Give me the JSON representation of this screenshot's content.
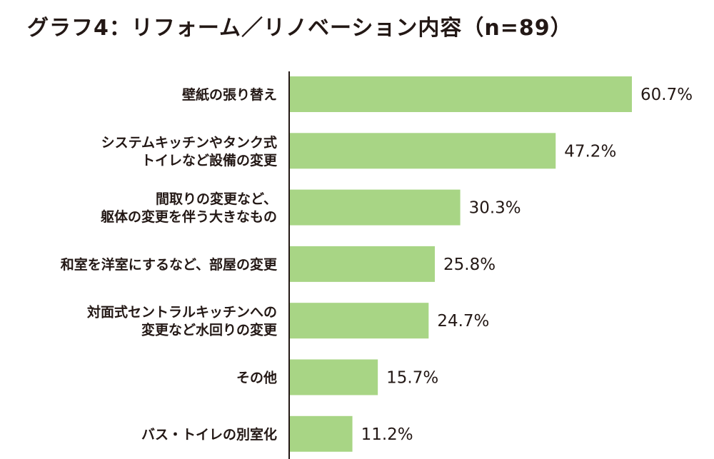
{
  "header": {
    "title": "グラフ4：リフォーム／リノベーション内容（n=89）"
  },
  "colors": {
    "bar": "#a8d585",
    "axis": "#231815",
    "text": "#231815"
  },
  "chart_data": {
    "type": "bar",
    "orientation": "horizontal",
    "title": "グラフ4：リフォーム／リノベーション内容（n=89）",
    "categories": [
      [
        "壁紙の張り替え"
      ],
      [
        "システムキッチンやタンク式",
        "トイレなど設備の変更"
      ],
      [
        "間取りの変更など、",
        "躯体の変更を伴う大きなもの"
      ],
      [
        "和室を洋室にするなど、部屋の変更"
      ],
      [
        "対面式セントラルキッチンへの",
        "変更など水回りの変更"
      ],
      [
        "その他"
      ],
      [
        "バス・トイレの別室化"
      ]
    ],
    "values": [
      60.7,
      47.2,
      30.3,
      25.8,
      24.7,
      15.7,
      11.2
    ],
    "value_labels": [
      "60.7%",
      "47.2%",
      "30.3%",
      "25.8%",
      "24.7%",
      "15.7%",
      "11.2%"
    ],
    "unit": "%",
    "xlim": [
      0,
      60.7
    ],
    "grid": false,
    "legend": "none"
  }
}
